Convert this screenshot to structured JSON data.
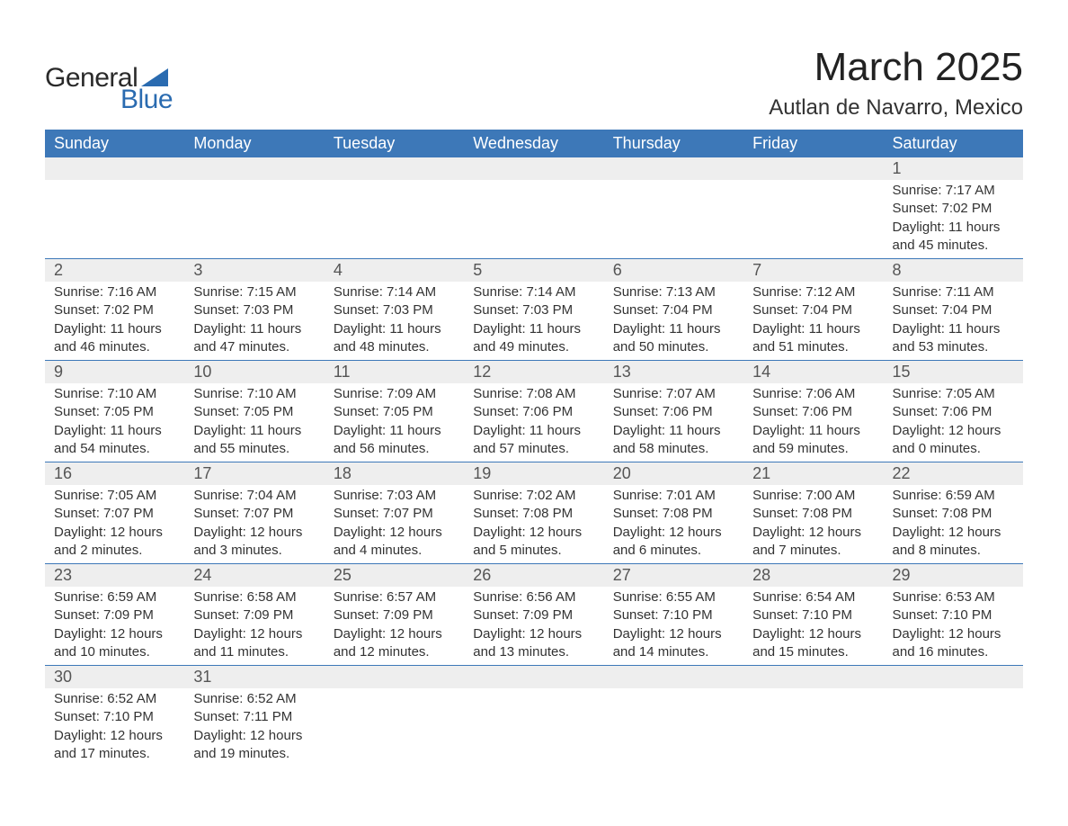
{
  "logo": {
    "text_main": "General",
    "text_sub": "Blue",
    "main_color": "#2a2a2a",
    "sub_color": "#2a6bb0",
    "triangle_color": "#2a6bb0"
  },
  "header": {
    "title": "March 2025",
    "location": "Autlan de Navarro, Mexico",
    "title_fontsize": 44,
    "location_fontsize": 24,
    "title_color": "#222222"
  },
  "calendar": {
    "header_bg": "#3d78b8",
    "header_fg": "#ffffff",
    "daynum_bg": "#eeeeee",
    "border_color": "#3d78b8",
    "text_color": "#333333",
    "fontsize_header": 18,
    "fontsize_daynum": 18,
    "fontsize_details": 15,
    "days": [
      "Sunday",
      "Monday",
      "Tuesday",
      "Wednesday",
      "Thursday",
      "Friday",
      "Saturday"
    ],
    "weeks": [
      [
        null,
        null,
        null,
        null,
        null,
        null,
        {
          "n": "1",
          "sunrise": "Sunrise: 7:17 AM",
          "sunset": "Sunset: 7:02 PM",
          "day1": "Daylight: 11 hours",
          "day2": "and 45 minutes."
        }
      ],
      [
        {
          "n": "2",
          "sunrise": "Sunrise: 7:16 AM",
          "sunset": "Sunset: 7:02 PM",
          "day1": "Daylight: 11 hours",
          "day2": "and 46 minutes."
        },
        {
          "n": "3",
          "sunrise": "Sunrise: 7:15 AM",
          "sunset": "Sunset: 7:03 PM",
          "day1": "Daylight: 11 hours",
          "day2": "and 47 minutes."
        },
        {
          "n": "4",
          "sunrise": "Sunrise: 7:14 AM",
          "sunset": "Sunset: 7:03 PM",
          "day1": "Daylight: 11 hours",
          "day2": "and 48 minutes."
        },
        {
          "n": "5",
          "sunrise": "Sunrise: 7:14 AM",
          "sunset": "Sunset: 7:03 PM",
          "day1": "Daylight: 11 hours",
          "day2": "and 49 minutes."
        },
        {
          "n": "6",
          "sunrise": "Sunrise: 7:13 AM",
          "sunset": "Sunset: 7:04 PM",
          "day1": "Daylight: 11 hours",
          "day2": "and 50 minutes."
        },
        {
          "n": "7",
          "sunrise": "Sunrise: 7:12 AM",
          "sunset": "Sunset: 7:04 PM",
          "day1": "Daylight: 11 hours",
          "day2": "and 51 minutes."
        },
        {
          "n": "8",
          "sunrise": "Sunrise: 7:11 AM",
          "sunset": "Sunset: 7:04 PM",
          "day1": "Daylight: 11 hours",
          "day2": "and 53 minutes."
        }
      ],
      [
        {
          "n": "9",
          "sunrise": "Sunrise: 7:10 AM",
          "sunset": "Sunset: 7:05 PM",
          "day1": "Daylight: 11 hours",
          "day2": "and 54 minutes."
        },
        {
          "n": "10",
          "sunrise": "Sunrise: 7:10 AM",
          "sunset": "Sunset: 7:05 PM",
          "day1": "Daylight: 11 hours",
          "day2": "and 55 minutes."
        },
        {
          "n": "11",
          "sunrise": "Sunrise: 7:09 AM",
          "sunset": "Sunset: 7:05 PM",
          "day1": "Daylight: 11 hours",
          "day2": "and 56 minutes."
        },
        {
          "n": "12",
          "sunrise": "Sunrise: 7:08 AM",
          "sunset": "Sunset: 7:06 PM",
          "day1": "Daylight: 11 hours",
          "day2": "and 57 minutes."
        },
        {
          "n": "13",
          "sunrise": "Sunrise: 7:07 AM",
          "sunset": "Sunset: 7:06 PM",
          "day1": "Daylight: 11 hours",
          "day2": "and 58 minutes."
        },
        {
          "n": "14",
          "sunrise": "Sunrise: 7:06 AM",
          "sunset": "Sunset: 7:06 PM",
          "day1": "Daylight: 11 hours",
          "day2": "and 59 minutes."
        },
        {
          "n": "15",
          "sunrise": "Sunrise: 7:05 AM",
          "sunset": "Sunset: 7:06 PM",
          "day1": "Daylight: 12 hours",
          "day2": "and 0 minutes."
        }
      ],
      [
        {
          "n": "16",
          "sunrise": "Sunrise: 7:05 AM",
          "sunset": "Sunset: 7:07 PM",
          "day1": "Daylight: 12 hours",
          "day2": "and 2 minutes."
        },
        {
          "n": "17",
          "sunrise": "Sunrise: 7:04 AM",
          "sunset": "Sunset: 7:07 PM",
          "day1": "Daylight: 12 hours",
          "day2": "and 3 minutes."
        },
        {
          "n": "18",
          "sunrise": "Sunrise: 7:03 AM",
          "sunset": "Sunset: 7:07 PM",
          "day1": "Daylight: 12 hours",
          "day2": "and 4 minutes."
        },
        {
          "n": "19",
          "sunrise": "Sunrise: 7:02 AM",
          "sunset": "Sunset: 7:08 PM",
          "day1": "Daylight: 12 hours",
          "day2": "and 5 minutes."
        },
        {
          "n": "20",
          "sunrise": "Sunrise: 7:01 AM",
          "sunset": "Sunset: 7:08 PM",
          "day1": "Daylight: 12 hours",
          "day2": "and 6 minutes."
        },
        {
          "n": "21",
          "sunrise": "Sunrise: 7:00 AM",
          "sunset": "Sunset: 7:08 PM",
          "day1": "Daylight: 12 hours",
          "day2": "and 7 minutes."
        },
        {
          "n": "22",
          "sunrise": "Sunrise: 6:59 AM",
          "sunset": "Sunset: 7:08 PM",
          "day1": "Daylight: 12 hours",
          "day2": "and 8 minutes."
        }
      ],
      [
        {
          "n": "23",
          "sunrise": "Sunrise: 6:59 AM",
          "sunset": "Sunset: 7:09 PM",
          "day1": "Daylight: 12 hours",
          "day2": "and 10 minutes."
        },
        {
          "n": "24",
          "sunrise": "Sunrise: 6:58 AM",
          "sunset": "Sunset: 7:09 PM",
          "day1": "Daylight: 12 hours",
          "day2": "and 11 minutes."
        },
        {
          "n": "25",
          "sunrise": "Sunrise: 6:57 AM",
          "sunset": "Sunset: 7:09 PM",
          "day1": "Daylight: 12 hours",
          "day2": "and 12 minutes."
        },
        {
          "n": "26",
          "sunrise": "Sunrise: 6:56 AM",
          "sunset": "Sunset: 7:09 PM",
          "day1": "Daylight: 12 hours",
          "day2": "and 13 minutes."
        },
        {
          "n": "27",
          "sunrise": "Sunrise: 6:55 AM",
          "sunset": "Sunset: 7:10 PM",
          "day1": "Daylight: 12 hours",
          "day2": "and 14 minutes."
        },
        {
          "n": "28",
          "sunrise": "Sunrise: 6:54 AM",
          "sunset": "Sunset: 7:10 PM",
          "day1": "Daylight: 12 hours",
          "day2": "and 15 minutes."
        },
        {
          "n": "29",
          "sunrise": "Sunrise: 6:53 AM",
          "sunset": "Sunset: 7:10 PM",
          "day1": "Daylight: 12 hours",
          "day2": "and 16 minutes."
        }
      ],
      [
        {
          "n": "30",
          "sunrise": "Sunrise: 6:52 AM",
          "sunset": "Sunset: 7:10 PM",
          "day1": "Daylight: 12 hours",
          "day2": "and 17 minutes."
        },
        {
          "n": "31",
          "sunrise": "Sunrise: 6:52 AM",
          "sunset": "Sunset: 7:11 PM",
          "day1": "Daylight: 12 hours",
          "day2": "and 19 minutes."
        },
        null,
        null,
        null,
        null,
        null
      ]
    ]
  }
}
